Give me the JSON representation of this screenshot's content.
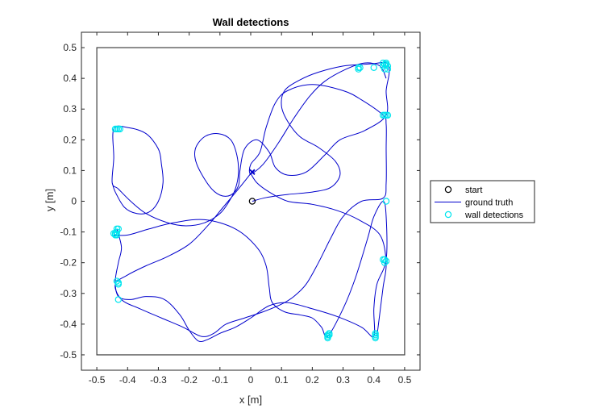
{
  "chart_data": {
    "type": "scatter",
    "title": "Wall detections",
    "xlabel": "x [m]",
    "ylabel": "y [m]",
    "xlim": [
      -0.55,
      0.55
    ],
    "ylim": [
      -0.55,
      0.55
    ],
    "xticks": [
      -0.5,
      -0.4,
      -0.3,
      -0.2,
      -0.1,
      0,
      0.1,
      0.2,
      0.3,
      0.4,
      0.5
    ],
    "yticks": [
      -0.5,
      -0.4,
      -0.3,
      -0.2,
      -0.1,
      0,
      0.1,
      0.2,
      0.3,
      0.4,
      0.5
    ],
    "tick_labels_x": [
      "-0.5",
      "-0.4",
      "-0.3",
      "-0.2",
      "-0.1",
      "0",
      "0.1",
      "0.2",
      "0.3",
      "0.4",
      "0.5"
    ],
    "tick_labels_y": [
      "-0.5",
      "-0.4",
      "-0.3",
      "-0.2",
      "-0.1",
      "0",
      "0.1",
      "0.2",
      "0.3",
      "0.4",
      "0.5"
    ],
    "grid": false,
    "legend_position": "outside-right",
    "arena": {
      "x": [
        -0.5,
        0.5
      ],
      "y": [
        -0.5,
        0.5
      ]
    },
    "series": [
      {
        "name": "start",
        "kind": "marker",
        "color": "#000000",
        "points": [
          [
            0.005,
            0.0
          ]
        ]
      },
      {
        "name": "ground truth",
        "kind": "line",
        "color": "#0000cc",
        "points": [
          [
            0.005,
            0.0
          ],
          [
            0.05,
            0.012
          ],
          [
            0.12,
            0.022
          ],
          [
            0.2,
            0.03
          ],
          [
            0.26,
            0.045
          ],
          [
            0.29,
            0.085
          ],
          [
            0.275,
            0.13
          ],
          [
            0.22,
            0.175
          ],
          [
            0.16,
            0.21
          ],
          [
            0.12,
            0.26
          ],
          [
            0.1,
            0.31
          ],
          [
            0.11,
            0.36
          ],
          [
            0.16,
            0.395
          ],
          [
            0.22,
            0.42
          ],
          [
            0.3,
            0.44
          ],
          [
            0.36,
            0.445
          ],
          [
            0.4,
            0.448
          ],
          [
            0.44,
            0.45
          ],
          [
            0.45,
            0.42
          ],
          [
            0.44,
            0.36
          ],
          [
            0.44,
            0.28
          ],
          [
            0.37,
            0.23
          ],
          [
            0.29,
            0.2
          ],
          [
            0.24,
            0.15
          ],
          [
            0.18,
            0.095
          ],
          [
            0.12,
            0.085
          ],
          [
            0.08,
            0.11
          ],
          [
            0.06,
            0.16
          ],
          [
            0.02,
            0.2
          ],
          [
            -0.02,
            0.17
          ],
          [
            -0.035,
            0.1
          ],
          [
            -0.04,
            0.05
          ],
          [
            -0.065,
            0.02
          ],
          [
            -0.1,
            0.02
          ],
          [
            -0.135,
            0.05
          ],
          [
            -0.175,
            0.12
          ],
          [
            -0.18,
            0.17
          ],
          [
            -0.15,
            0.21
          ],
          [
            -0.105,
            0.22
          ],
          [
            -0.065,
            0.2
          ],
          [
            -0.045,
            0.15
          ],
          [
            -0.04,
            0.09
          ],
          [
            -0.05,
            0.04
          ],
          [
            -0.07,
            0.0
          ],
          [
            -0.1,
            -0.04
          ],
          [
            -0.15,
            -0.07
          ],
          [
            -0.21,
            -0.08
          ],
          [
            -0.27,
            -0.07
          ],
          [
            -0.34,
            -0.04
          ],
          [
            -0.39,
            0.0
          ],
          [
            -0.43,
            0.04
          ],
          [
            -0.45,
            0.06
          ],
          [
            -0.445,
            0.14
          ],
          [
            -0.445,
            0.235
          ],
          [
            -0.4,
            0.24
          ],
          [
            -0.34,
            0.22
          ],
          [
            -0.3,
            0.17
          ],
          [
            -0.29,
            0.12
          ],
          [
            -0.285,
            0.06
          ],
          [
            -0.3,
            0.0
          ],
          [
            -0.33,
            -0.035
          ],
          [
            -0.37,
            -0.04
          ],
          [
            -0.41,
            -0.02
          ],
          [
            -0.44,
            0.03
          ],
          [
            -0.45,
            0.06
          ]
        ]
      },
      {
        "name": "ground truth",
        "kind": "line",
        "color": "#0000cc",
        "points": [
          [
            -0.445,
            -0.11
          ],
          [
            -0.4,
            -0.11
          ],
          [
            -0.33,
            -0.09
          ],
          [
            -0.25,
            -0.07
          ],
          [
            -0.15,
            -0.06
          ],
          [
            -0.05,
            -0.09
          ],
          [
            0.02,
            -0.15
          ],
          [
            0.05,
            -0.21
          ],
          [
            0.06,
            -0.28
          ],
          [
            0.07,
            -0.33
          ],
          [
            0.11,
            -0.36
          ],
          [
            0.16,
            -0.37
          ],
          [
            0.2,
            -0.38
          ],
          [
            0.23,
            -0.41
          ],
          [
            0.25,
            -0.44
          ],
          [
            0.3,
            -0.35
          ],
          [
            0.34,
            -0.25
          ],
          [
            0.38,
            -0.12
          ],
          [
            0.4,
            -0.05
          ],
          [
            0.43,
            0.0
          ],
          [
            0.44,
            -0.05
          ],
          [
            0.44,
            -0.19
          ],
          [
            0.41,
            -0.27
          ],
          [
            0.4,
            -0.35
          ],
          [
            0.4,
            -0.44
          ],
          [
            0.36,
            -0.41
          ],
          [
            0.28,
            -0.375
          ],
          [
            0.2,
            -0.35
          ],
          [
            0.12,
            -0.33
          ],
          [
            0.06,
            -0.34
          ],
          [
            0.0,
            -0.38
          ],
          [
            -0.05,
            -0.41
          ],
          [
            -0.1,
            -0.43
          ],
          [
            -0.14,
            -0.45
          ],
          [
            -0.17,
            -0.455
          ],
          [
            -0.2,
            -0.42
          ],
          [
            -0.23,
            -0.37
          ],
          [
            -0.28,
            -0.32
          ],
          [
            -0.34,
            -0.31
          ],
          [
            -0.39,
            -0.32
          ],
          [
            -0.43,
            -0.31
          ],
          [
            -0.44,
            -0.26
          ],
          [
            -0.43,
            -0.2
          ],
          [
            -0.42,
            -0.15
          ],
          [
            -0.435,
            -0.09
          ]
        ]
      },
      {
        "name": "ground truth",
        "kind": "line",
        "color": "#0000cc",
        "points": [
          [
            0.0,
            0.09
          ],
          [
            -0.04,
            0.04
          ],
          [
            -0.09,
            -0.02
          ],
          [
            -0.14,
            -0.08
          ],
          [
            -0.2,
            -0.14
          ],
          [
            -0.27,
            -0.18
          ],
          [
            -0.34,
            -0.21
          ],
          [
            -0.4,
            -0.24
          ],
          [
            -0.44,
            -0.27
          ],
          [
            -0.42,
            -0.32
          ],
          [
            -0.36,
            -0.35
          ],
          [
            -0.29,
            -0.38
          ],
          [
            -0.22,
            -0.41
          ],
          [
            -0.16,
            -0.44
          ],
          [
            -0.12,
            -0.43
          ],
          [
            -0.08,
            -0.4
          ],
          [
            -0.02,
            -0.38
          ],
          [
            0.04,
            -0.36
          ],
          [
            0.1,
            -0.335
          ],
          [
            0.14,
            -0.31
          ],
          [
            0.18,
            -0.27
          ],
          [
            0.22,
            -0.2
          ],
          [
            0.26,
            -0.12
          ],
          [
            0.3,
            -0.05
          ],
          [
            0.36,
            0.0
          ],
          [
            0.43,
            0.01
          ],
          [
            0.44,
            0.06
          ],
          [
            0.44,
            0.17
          ],
          [
            0.44,
            0.25
          ],
          [
            0.43,
            0.28
          ],
          [
            0.36,
            0.33
          ],
          [
            0.3,
            0.36
          ],
          [
            0.2,
            0.38
          ],
          [
            0.12,
            0.36
          ],
          [
            0.08,
            0.32
          ],
          [
            0.05,
            0.24
          ],
          [
            0.03,
            0.16
          ],
          [
            0.0,
            0.12
          ],
          [
            0.0,
            0.09
          ],
          [
            0.04,
            0.12
          ],
          [
            0.09,
            0.19
          ],
          [
            0.14,
            0.27
          ],
          [
            0.19,
            0.34
          ],
          [
            0.24,
            0.39
          ],
          [
            0.31,
            0.43
          ],
          [
            0.37,
            0.45
          ],
          [
            0.42,
            0.44
          ],
          [
            0.44,
            0.4
          ]
        ]
      },
      {
        "name": "ground truth",
        "kind": "line",
        "color": "#0000cc",
        "points": [
          [
            0.0,
            0.09
          ],
          [
            0.02,
            0.06
          ],
          [
            0.06,
            0.03
          ],
          [
            0.12,
            0.0
          ],
          [
            0.2,
            -0.01
          ],
          [
            0.28,
            -0.03
          ],
          [
            0.35,
            -0.06
          ],
          [
            0.42,
            -0.11
          ],
          [
            0.44,
            -0.2
          ],
          [
            0.43,
            -0.28
          ],
          [
            0.42,
            -0.36
          ],
          [
            0.41,
            -0.44
          ]
        ]
      },
      {
        "name": "wall detections",
        "kind": "marker",
        "color": "#00e5ee",
        "points": [
          [
            -0.44,
            0.235
          ],
          [
            -0.435,
            0.235
          ],
          [
            -0.43,
            0.235
          ],
          [
            -0.425,
            0.235
          ],
          [
            -0.44,
            -0.105
          ],
          [
            -0.44,
            -0.11
          ],
          [
            -0.435,
            -0.11
          ],
          [
            -0.445,
            -0.105
          ],
          [
            -0.435,
            -0.09
          ],
          [
            -0.43,
            -0.09
          ],
          [
            -0.435,
            -0.1
          ],
          [
            -0.435,
            -0.26
          ],
          [
            -0.43,
            -0.265
          ],
          [
            -0.43,
            -0.27
          ],
          [
            -0.43,
            -0.32
          ],
          [
            0.35,
            0.43
          ],
          [
            0.35,
            0.435
          ],
          [
            0.355,
            0.435
          ],
          [
            0.4,
            0.435
          ],
          [
            0.43,
            0.44
          ],
          [
            0.435,
            0.445
          ],
          [
            0.44,
            0.445
          ],
          [
            0.445,
            0.44
          ],
          [
            0.445,
            0.43
          ],
          [
            0.44,
            0.45
          ],
          [
            0.43,
            0.45
          ],
          [
            0.435,
            0.43
          ],
          [
            0.43,
            0.28
          ],
          [
            0.435,
            0.28
          ],
          [
            0.44,
            0.28
          ],
          [
            0.445,
            0.28
          ],
          [
            0.44,
            0.0
          ],
          [
            0.435,
            -0.19
          ],
          [
            0.44,
            -0.195
          ],
          [
            0.435,
            -0.2
          ],
          [
            0.43,
            -0.19
          ],
          [
            0.25,
            -0.44
          ],
          [
            0.25,
            -0.445
          ],
          [
            0.255,
            -0.435
          ],
          [
            0.255,
            -0.43
          ],
          [
            0.25,
            -0.435
          ],
          [
            0.405,
            -0.43
          ],
          [
            0.405,
            -0.435
          ],
          [
            0.405,
            -0.44
          ],
          [
            0.405,
            -0.445
          ]
        ]
      },
      {
        "name": "end",
        "kind": "marker",
        "color": "#0000cc",
        "points": [
          [
            0.005,
            0.095
          ]
        ]
      }
    ],
    "legend": [
      {
        "label": "start",
        "marker": "circle",
        "color": "#000000"
      },
      {
        "label": "ground truth",
        "marker": "line",
        "color": "#0000cc"
      },
      {
        "label": "wall detections",
        "marker": "circle",
        "color": "#00e5ee"
      }
    ]
  }
}
